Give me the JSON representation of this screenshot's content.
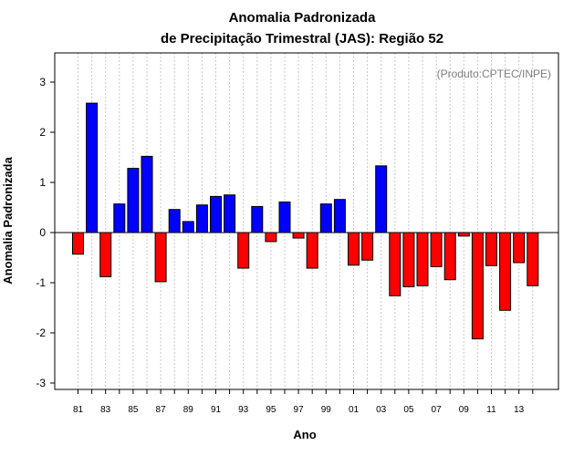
{
  "chart_data": {
    "type": "bar",
    "title_line1": "Anomalia Padronizada",
    "title_line2": "de Precipitação Trimestral (JAS): Região 52",
    "credit": "(Produto:CPTEC/INPE)",
    "xlabel": "Ano",
    "ylabel": "Anomalia Padronizada",
    "ylim": [
      -3.15,
      3.6
    ],
    "yticks": [
      -3,
      -2,
      -1,
      0,
      1,
      2,
      3
    ],
    "ytick_labels": [
      "-3",
      "-2",
      "-1",
      "0",
      "1",
      "2",
      "3"
    ],
    "years": [
      "81",
      "82",
      "83",
      "84",
      "85",
      "86",
      "87",
      "88",
      "89",
      "90",
      "91",
      "92",
      "93",
      "94",
      "95",
      "96",
      "97",
      "98",
      "99",
      "00",
      "01",
      "02",
      "03",
      "04",
      "05",
      "06",
      "07",
      "08",
      "09",
      "10",
      "11",
      "12",
      "13",
      "14"
    ],
    "xtick_labels": [
      "81",
      "83",
      "85",
      "87",
      "89",
      "91",
      "93",
      "95",
      "97",
      "99",
      "01",
      "03",
      "05",
      "07",
      "09",
      "11",
      "13"
    ],
    "values": [
      -0.43,
      2.58,
      -0.88,
      0.57,
      1.28,
      1.52,
      -0.98,
      0.46,
      0.22,
      0.55,
      0.72,
      0.75,
      -0.71,
      0.52,
      -0.18,
      0.61,
      -0.11,
      -0.71,
      0.57,
      0.66,
      -0.65,
      -0.55,
      1.33,
      -1.26,
      -1.08,
      -1.06,
      -0.68,
      -0.94,
      -0.07,
      -2.12,
      -0.66,
      -1.55,
      -0.6,
      -1.06
    ],
    "colors": {
      "positive": "#0000ff",
      "negative": "#ff0000",
      "grid": "#c8c8c8"
    }
  }
}
